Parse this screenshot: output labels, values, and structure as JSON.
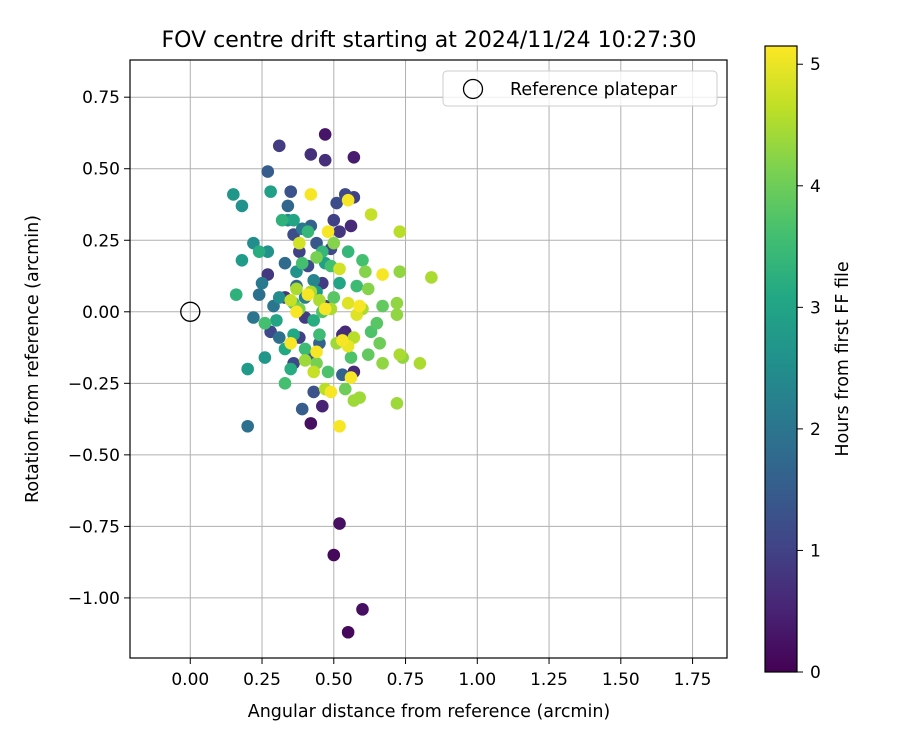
{
  "chart_data": {
    "type": "scatter",
    "title": "FOV centre drift starting at 2024/11/24 10:27:30",
    "xlabel": "Angular distance from reference (arcmin)",
    "ylabel": "Rotation from reference (arcmin)",
    "xlim": [
      -0.21,
      1.87
    ],
    "ylim": [
      -1.21,
      0.88
    ],
    "x_ticks": [
      0.0,
      0.25,
      0.5,
      0.75,
      1.0,
      1.25,
      1.5,
      1.75
    ],
    "x_tick_labels": [
      "0.00",
      "0.25",
      "0.50",
      "0.75",
      "1.00",
      "1.25",
      "1.50",
      "1.75"
    ],
    "y_ticks": [
      0.75,
      0.5,
      0.25,
      0.0,
      -0.25,
      -0.5,
      -0.75,
      -1.0
    ],
    "y_tick_labels": [
      "0.75",
      "0.50",
      "0.25",
      "0.00",
      "−0.25",
      "−0.50",
      "−0.75",
      "−1.00"
    ],
    "grid": true,
    "legend": {
      "placement": "top-right",
      "label": "Reference platepar"
    },
    "reference_point": {
      "x": 0.0,
      "y": 0.0
    },
    "colorbar": {
      "label": "Hours from first FF file",
      "range": [
        0,
        5.15
      ],
      "colormap": "viridis",
      "ticks": [
        0,
        1,
        2,
        3,
        4,
        5
      ],
      "tick_labels": [
        "0",
        "1",
        "2",
        "3",
        "4",
        "5"
      ]
    },
    "points": [
      {
        "x": 0.5,
        "y": -0.85,
        "h": 0.1
      },
      {
        "x": 0.55,
        "y": -1.12,
        "h": 0.1
      },
      {
        "x": 0.6,
        "y": -1.04,
        "h": 0.2
      },
      {
        "x": 0.52,
        "y": -0.74,
        "h": 0.2
      },
      {
        "x": 0.42,
        "y": -0.39,
        "h": 0.2
      },
      {
        "x": 0.47,
        "y": 0.62,
        "h": 0.3
      },
      {
        "x": 0.57,
        "y": 0.54,
        "h": 0.4
      },
      {
        "x": 0.46,
        "y": -0.33,
        "h": 0.5
      },
      {
        "x": 0.57,
        "y": -0.21,
        "h": 0.6
      },
      {
        "x": 0.54,
        "y": -0.07,
        "h": 0.6
      },
      {
        "x": 0.47,
        "y": 0.53,
        "h": 0.7
      },
      {
        "x": 0.42,
        "y": 0.55,
        "h": 0.7
      },
      {
        "x": 0.31,
        "y": 0.58,
        "h": 0.9
      },
      {
        "x": 0.57,
        "y": 0.4,
        "h": 1.0
      },
      {
        "x": 0.54,
        "y": 0.41,
        "h": 1.1
      },
      {
        "x": 0.51,
        "y": 0.38,
        "h": 1.2
      },
      {
        "x": 0.35,
        "y": 0.42,
        "h": 1.3
      },
      {
        "x": 0.56,
        "y": 0.3,
        "h": 0.6
      },
      {
        "x": 0.52,
        "y": 0.28,
        "h": 0.8
      },
      {
        "x": 0.5,
        "y": 0.32,
        "h": 1.0
      },
      {
        "x": 0.27,
        "y": 0.13,
        "h": 0.8
      },
      {
        "x": 0.46,
        "y": 0.1,
        "h": 0.9
      },
      {
        "x": 0.38,
        "y": 0.21,
        "h": 1.0
      },
      {
        "x": 0.49,
        "y": 0.22,
        "h": 1.1
      },
      {
        "x": 0.41,
        "y": 0.16,
        "h": 1.2
      },
      {
        "x": 0.36,
        "y": 0.27,
        "h": 1.2
      },
      {
        "x": 0.33,
        "y": 0.05,
        "h": 0.8
      },
      {
        "x": 0.47,
        "y": 0.02,
        "h": 0.9
      },
      {
        "x": 0.28,
        "y": -0.07,
        "h": 1.1
      },
      {
        "x": 0.38,
        "y": -0.09,
        "h": 1.0
      },
      {
        "x": 0.4,
        "y": -0.02,
        "h": 0.9
      },
      {
        "x": 0.53,
        "y": -0.08,
        "h": 0.7
      },
      {
        "x": 0.36,
        "y": -0.18,
        "h": 1.1
      },
      {
        "x": 0.43,
        "y": -0.28,
        "h": 1.3
      },
      {
        "x": 0.39,
        "y": -0.34,
        "h": 1.5
      },
      {
        "x": 0.53,
        "y": -0.22,
        "h": 1.6
      },
      {
        "x": 0.2,
        "y": -0.4,
        "h": 1.9
      },
      {
        "x": 0.27,
        "y": 0.49,
        "h": 1.5
      },
      {
        "x": 0.34,
        "y": 0.37,
        "h": 1.7
      },
      {
        "x": 0.44,
        "y": 0.24,
        "h": 1.4
      },
      {
        "x": 0.42,
        "y": 0.3,
        "h": 1.6
      },
      {
        "x": 0.33,
        "y": 0.17,
        "h": 1.8
      },
      {
        "x": 0.24,
        "y": 0.06,
        "h": 1.9
      },
      {
        "x": 0.29,
        "y": 0.02,
        "h": 2.0
      },
      {
        "x": 0.22,
        "y": -0.02,
        "h": 2.0
      },
      {
        "x": 0.25,
        "y": 0.1,
        "h": 2.1
      },
      {
        "x": 0.37,
        "y": 0.09,
        "h": 1.7
      },
      {
        "x": 0.45,
        "y": -0.11,
        "h": 1.6
      },
      {
        "x": 0.41,
        "y": -0.16,
        "h": 1.5
      },
      {
        "x": 0.31,
        "y": -0.09,
        "h": 1.9
      },
      {
        "x": 0.4,
        "y": 0.05,
        "h": 2.2
      },
      {
        "x": 0.43,
        "y": 0.11,
        "h": 2.3
      },
      {
        "x": 0.39,
        "y": 0.29,
        "h": 2.1
      },
      {
        "x": 0.34,
        "y": 0.32,
        "h": 2.4
      },
      {
        "x": 0.22,
        "y": 0.24,
        "h": 2.5
      },
      {
        "x": 0.27,
        "y": 0.21,
        "h": 2.6
      },
      {
        "x": 0.15,
        "y": 0.41,
        "h": 2.7
      },
      {
        "x": 0.18,
        "y": 0.37,
        "h": 2.6
      },
      {
        "x": 0.2,
        "y": -0.2,
        "h": 2.8
      },
      {
        "x": 0.26,
        "y": -0.16,
        "h": 2.7
      },
      {
        "x": 0.18,
        "y": 0.18,
        "h": 2.8
      },
      {
        "x": 0.28,
        "y": 0.42,
        "h": 2.9
      },
      {
        "x": 0.36,
        "y": 0.32,
        "h": 3.0
      },
      {
        "x": 0.31,
        "y": 0.05,
        "h": 2.5
      },
      {
        "x": 0.37,
        "y": 0.14,
        "h": 2.6
      },
      {
        "x": 0.44,
        "y": 0.07,
        "h": 2.8
      },
      {
        "x": 0.47,
        "y": 0.17,
        "h": 2.9
      },
      {
        "x": 0.52,
        "y": 0.1,
        "h": 3.0
      },
      {
        "x": 0.3,
        "y": -0.03,
        "h": 3.0
      },
      {
        "x": 0.36,
        "y": -0.08,
        "h": 3.1
      },
      {
        "x": 0.33,
        "y": -0.13,
        "h": 3.1
      },
      {
        "x": 0.35,
        "y": -0.2,
        "h": 3.2
      },
      {
        "x": 0.43,
        "y": -0.03,
        "h": 3.2
      },
      {
        "x": 0.24,
        "y": 0.21,
        "h": 3.2
      },
      {
        "x": 0.16,
        "y": 0.06,
        "h": 3.3
      },
      {
        "x": 0.32,
        "y": 0.32,
        "h": 3.3
      },
      {
        "x": 0.41,
        "y": 0.28,
        "h": 3.4
      },
      {
        "x": 0.46,
        "y": 0.21,
        "h": 3.4
      },
      {
        "x": 0.55,
        "y": 0.21,
        "h": 3.4
      },
      {
        "x": 0.58,
        "y": 0.09,
        "h": 3.5
      },
      {
        "x": 0.45,
        "y": -0.08,
        "h": 3.5
      },
      {
        "x": 0.4,
        "y": -0.13,
        "h": 3.5
      },
      {
        "x": 0.33,
        "y": -0.25,
        "h": 3.6
      },
      {
        "x": 0.26,
        "y": -0.04,
        "h": 3.6
      },
      {
        "x": 0.39,
        "y": 0.17,
        "h": 3.6
      },
      {
        "x": 0.49,
        "y": 0.16,
        "h": 3.6
      },
      {
        "x": 0.6,
        "y": 0.18,
        "h": 3.6
      },
      {
        "x": 0.63,
        "y": -0.07,
        "h": 3.7
      },
      {
        "x": 0.56,
        "y": -0.16,
        "h": 3.7
      },
      {
        "x": 0.48,
        "y": -0.21,
        "h": 3.7
      },
      {
        "x": 0.46,
        "y": 0.0,
        "h": 3.7
      },
      {
        "x": 0.36,
        "y": 0.03,
        "h": 3.7
      },
      {
        "x": 0.5,
        "y": 0.05,
        "h": 3.8
      },
      {
        "x": 0.65,
        "y": -0.04,
        "h": 3.8
      },
      {
        "x": 0.67,
        "y": 0.02,
        "h": 3.9
      },
      {
        "x": 0.62,
        "y": -0.15,
        "h": 3.9
      },
      {
        "x": 0.66,
        "y": -0.11,
        "h": 4.0
      },
      {
        "x": 0.54,
        "y": -0.27,
        "h": 4.0
      },
      {
        "x": 0.44,
        "y": -0.18,
        "h": 4.1
      },
      {
        "x": 0.38,
        "y": 0.01,
        "h": 4.1
      },
      {
        "x": 0.44,
        "y": 0.19,
        "h": 4.1
      },
      {
        "x": 0.5,
        "y": 0.24,
        "h": 4.2
      },
      {
        "x": 0.61,
        "y": 0.14,
        "h": 4.2
      },
      {
        "x": 0.62,
        "y": 0.08,
        "h": 4.2
      },
      {
        "x": 0.67,
        "y": -0.18,
        "h": 4.3
      },
      {
        "x": 0.72,
        "y": -0.01,
        "h": 4.3
      },
      {
        "x": 0.72,
        "y": 0.03,
        "h": 4.3
      },
      {
        "x": 0.73,
        "y": 0.14,
        "h": 4.3
      },
      {
        "x": 0.74,
        "y": -0.16,
        "h": 4.3
      },
      {
        "x": 0.72,
        "y": -0.32,
        "h": 4.4
      },
      {
        "x": 0.57,
        "y": -0.31,
        "h": 4.4
      },
      {
        "x": 0.59,
        "y": -0.3,
        "h": 4.4
      },
      {
        "x": 0.51,
        "y": -0.11,
        "h": 4.4
      },
      {
        "x": 0.4,
        "y": -0.17,
        "h": 4.4
      },
      {
        "x": 0.37,
        "y": 0.08,
        "h": 4.5
      },
      {
        "x": 0.45,
        "y": 0.04,
        "h": 4.5
      },
      {
        "x": 0.42,
        "y": 0.07,
        "h": 4.5
      },
      {
        "x": 0.49,
        "y": 0.01,
        "h": 4.5
      },
      {
        "x": 0.6,
        "y": 0.01,
        "h": 4.5
      },
      {
        "x": 0.63,
        "y": 0.34,
        "h": 4.7
      },
      {
        "x": 0.73,
        "y": 0.28,
        "h": 4.6
      },
      {
        "x": 0.84,
        "y": 0.12,
        "h": 4.5
      },
      {
        "x": 0.8,
        "y": -0.18,
        "h": 4.5
      },
      {
        "x": 0.73,
        "y": -0.15,
        "h": 4.5
      },
      {
        "x": 0.57,
        "y": -0.09,
        "h": 4.6
      },
      {
        "x": 0.47,
        "y": -0.27,
        "h": 4.6
      },
      {
        "x": 0.43,
        "y": -0.21,
        "h": 4.7
      },
      {
        "x": 0.35,
        "y": 0.04,
        "h": 4.7
      },
      {
        "x": 0.38,
        "y": 0.24,
        "h": 4.8
      },
      {
        "x": 0.52,
        "y": 0.15,
        "h": 4.8
      },
      {
        "x": 0.55,
        "y": 0.03,
        "h": 4.9
      },
      {
        "x": 0.58,
        "y": -0.01,
        "h": 4.9
      },
      {
        "x": 0.55,
        "y": -0.12,
        "h": 5.0
      },
      {
        "x": 0.53,
        "y": -0.1,
        "h": 5.1
      },
      {
        "x": 0.56,
        "y": -0.23,
        "h": 5.1
      },
      {
        "x": 0.49,
        "y": -0.28,
        "h": 5.1
      },
      {
        "x": 0.52,
        "y": -0.4,
        "h": 5.1
      },
      {
        "x": 0.44,
        "y": -0.14,
        "h": 5.1
      },
      {
        "x": 0.35,
        "y": -0.11,
        "h": 5.1
      },
      {
        "x": 0.37,
        "y": 0.0,
        "h": 5.1
      },
      {
        "x": 0.41,
        "y": 0.06,
        "h": 5.1
      },
      {
        "x": 0.48,
        "y": 0.28,
        "h": 5.1
      },
      {
        "x": 0.42,
        "y": 0.41,
        "h": 5.1
      },
      {
        "x": 0.55,
        "y": 0.39,
        "h": 5.1
      },
      {
        "x": 0.59,
        "y": 0.02,
        "h": 5.1
      },
      {
        "x": 0.67,
        "y": 0.13,
        "h": 5.1
      },
      {
        "x": 0.47,
        "y": 0.01,
        "h": 5.1
      }
    ]
  }
}
